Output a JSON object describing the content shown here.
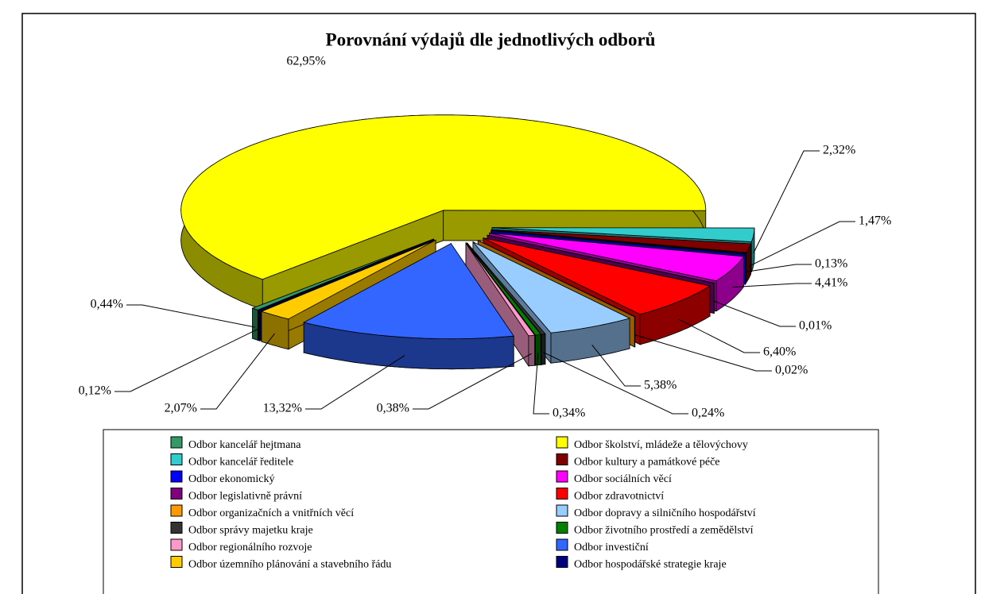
{
  "chart_data": {
    "type": "pie",
    "title": "Porovnání výdajů dle jednotlivých odborů",
    "categories": [
      "Odbor kancelář hejtmana",
      "Odbor školství, mládeže a tělovýchovy",
      "Odbor kancelář ředitele",
      "Odbor kultury a památkové péče",
      "Odbor ekonomický",
      "Odbor sociálních věcí",
      "Odbor legislativně právní",
      "Odbor zdravotnictví",
      "Odbor organizačních a vnitřních věcí",
      "Odbor dopravy a silničního hospodářství",
      "Odbor správy majetku kraje",
      "Odbor životního prostředí a zemědělství",
      "Odbor regionálního rozvoje",
      "Odbor investiční",
      "Odbor územního plánování a stavebního řádu",
      "Odbor hospodářské strategie kraje"
    ],
    "values": [
      0.44,
      62.95,
      2.32,
      1.47,
      0.13,
      4.41,
      0.01,
      6.4,
      0.02,
      5.38,
      0.24,
      0.34,
      0.38,
      13.32,
      2.07,
      0.12
    ],
    "value_labels": [
      "0,44%",
      "62,95%",
      "2,32%",
      "1,47%",
      "0,13%",
      "4,41%",
      "0,01%",
      "6,40%",
      "0,02%",
      "5,38%",
      "0,24%",
      "0,34%",
      "0,38%",
      "13,32%",
      "2,07%",
      "0,12%"
    ],
    "colors": [
      "#339966",
      "#ffff00",
      "#33cccc",
      "#800000",
      "#0000ff",
      "#ff00ff",
      "#800080",
      "#ff0000",
      "#ff9900",
      "#99ccff",
      "#333333",
      "#008000",
      "#ff99cc",
      "#3366ff",
      "#ffcc00",
      "#000080"
    ],
    "legend": "bottom"
  }
}
